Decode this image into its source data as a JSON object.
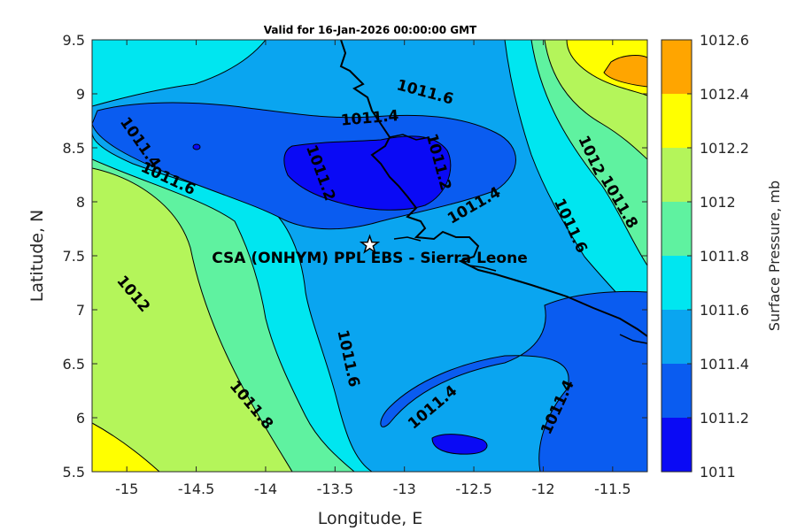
{
  "chart_data": {
    "type": "contour",
    "title": "Valid for 16-Jan-2026 00:00:00 GMT",
    "xlabel": "Longitude, E",
    "ylabel": "Latitude, N",
    "xlim": [
      -15.25,
      -11.25
    ],
    "ylim": [
      5.5,
      9.5
    ],
    "xticks": [
      -15,
      -14.5,
      -14,
      -13.5,
      -13,
      -12.5,
      -12,
      -11.5
    ],
    "xtick_labels": [
      "-15",
      "-14.5",
      "-14",
      "-13.5",
      "-13",
      "-12.5",
      "-12",
      "-11.5"
    ],
    "yticks": [
      5.5,
      6,
      6.5,
      7,
      7.5,
      8,
      8.5,
      9,
      9.5
    ],
    "ytick_labels": [
      "5.5",
      "6",
      "6.5",
      "7",
      "7.5",
      "8",
      "8.5",
      "9",
      "9.5"
    ],
    "colorbar": {
      "label": "Surface Pressure, mb",
      "levels": [
        1011,
        1011.2,
        1011.4,
        1011.6,
        1011.8,
        1012,
        1012.2,
        1012.4,
        1012.6
      ],
      "level_labels": [
        "1011",
        "1011.2",
        "1011.4",
        "1011.6",
        "1011.8",
        "1012",
        "1012.2",
        "1012.4",
        "1012.6"
      ],
      "colors": [
        "#0a0af5",
        "#0a5cf0",
        "#0aa5f0",
        "#00e6f0",
        "#5ff2a0",
        "#b4f55a",
        "#ffff00",
        "#ffa500",
        "#ff5a00"
      ]
    },
    "contour_labels": [
      {
        "value": "1011.6",
        "lon": -12.85,
        "lat": 9.02,
        "angle": 15
      },
      {
        "value": "1011.4",
        "lon": -13.25,
        "lat": 8.78,
        "angle": -5
      },
      {
        "value": "1011.4",
        "lon": -14.9,
        "lat": 8.55,
        "angle": 55
      },
      {
        "value": "1011.6",
        "lon": -14.7,
        "lat": 8.22,
        "angle": 25
      },
      {
        "value": "1011.2",
        "lon": -13.6,
        "lat": 8.27,
        "angle": 70
      },
      {
        "value": "1011.2",
        "lon": -12.75,
        "lat": 8.37,
        "angle": 75
      },
      {
        "value": "1011.4",
        "lon": -12.5,
        "lat": 7.97,
        "angle": -30
      },
      {
        "value": "1012",
        "lon": -11.65,
        "lat": 8.43,
        "angle": 65
      },
      {
        "value": "1011.8",
        "lon": -11.45,
        "lat": 8.0,
        "angle": 60
      },
      {
        "value": "1011.6",
        "lon": -11.8,
        "lat": 7.78,
        "angle": 65
      },
      {
        "value": "1012",
        "lon": -14.95,
        "lat": 7.15,
        "angle": 50
      },
      {
        "value": "1011.6",
        "lon": -13.4,
        "lat": 6.55,
        "angle": 78
      },
      {
        "value": "1011.8",
        "lon": -14.1,
        "lat": 6.12,
        "angle": 50
      },
      {
        "value": "1011.4",
        "lon": -12.8,
        "lat": 6.1,
        "angle": -40
      },
      {
        "value": "1011.4",
        "lon": -11.9,
        "lat": 6.1,
        "angle": -65
      }
    ],
    "site": {
      "name": "CSA (ONHYM) PPL EBS  - Sierra Leone",
      "lon": -13.25,
      "lat": 7.6
    }
  }
}
